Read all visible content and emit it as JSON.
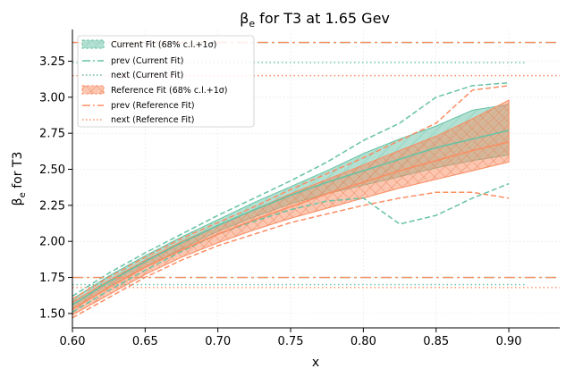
{
  "chart_data": {
    "type": "line",
    "title": "βe for T3 at 1.65 Gev",
    "title_main": "β",
    "title_sub": "e",
    "title_rest": " for T3 at 1.65 Gev",
    "xlabel": "x",
    "ylabel_main": "β",
    "ylabel_sub": "e",
    "ylabel_rest": " for T3",
    "xlim": [
      0.6,
      0.935
    ],
    "ylim": [
      1.4,
      3.47
    ],
    "x_ticks": [
      "0.60",
      "0.65",
      "0.70",
      "0.75",
      "0.80",
      "0.85",
      "0.90"
    ],
    "y_ticks": [
      "1.50",
      "1.75",
      "2.00",
      "2.25",
      "2.50",
      "2.75",
      "3.00",
      "3.25"
    ],
    "grid": true,
    "legend_position": "top-left",
    "colors": {
      "current": "#66c2a5",
      "reference": "#fc8d62"
    },
    "legend": [
      "Current Fit (68% c.l.+1σ)",
      "prev (Current Fit)",
      "next (Current Fit)",
      "Reference Fit (68% c.l.+1σ)",
      "prev (Reference Fit)",
      "next (Reference Fit)"
    ],
    "x": [
      0.6,
      0.625,
      0.65,
      0.675,
      0.7,
      0.725,
      0.75,
      0.775,
      0.8,
      0.825,
      0.85,
      0.875,
      0.9
    ],
    "series": [
      {
        "name": "Current Fit (68% c.l.+1σ)",
        "central": [
          1.56,
          1.72,
          1.86,
          1.99,
          2.11,
          2.22,
          2.32,
          2.41,
          2.49,
          2.57,
          2.65,
          2.71,
          2.77
        ],
        "upper": [
          1.6,
          1.76,
          1.9,
          2.03,
          2.15,
          2.27,
          2.38,
          2.49,
          2.61,
          2.71,
          2.8,
          2.91,
          2.95
        ],
        "lower": [
          1.53,
          1.68,
          1.82,
          1.95,
          2.07,
          2.17,
          2.26,
          2.33,
          2.39,
          2.45,
          2.51,
          2.56,
          2.6
        ],
        "outer_upper": [
          1.62,
          1.78,
          1.92,
          2.05,
          2.18,
          2.3,
          2.42,
          2.55,
          2.7,
          2.82,
          3.0,
          3.08,
          3.1
        ],
        "outer_lower": [
          1.51,
          1.66,
          1.8,
          1.93,
          2.05,
          2.14,
          2.22,
          2.28,
          2.3,
          2.12,
          2.18,
          2.3,
          2.4
        ],
        "prev_level": 3.38,
        "next_level": 3.24,
        "prev_low": 1.75,
        "next_low": 1.7
      },
      {
        "name": "Reference Fit (68% c.l.+1σ)",
        "central": [
          1.53,
          1.68,
          1.82,
          1.94,
          2.05,
          2.15,
          2.24,
          2.33,
          2.41,
          2.49,
          2.56,
          2.63,
          2.69
        ],
        "upper": [
          1.58,
          1.73,
          1.87,
          2.0,
          2.11,
          2.22,
          2.33,
          2.43,
          2.53,
          2.63,
          2.73,
          2.85,
          2.98
        ],
        "lower": [
          1.49,
          1.63,
          1.77,
          1.89,
          1.99,
          2.08,
          2.16,
          2.23,
          2.3,
          2.37,
          2.43,
          2.49,
          2.55
        ],
        "outer_upper": [
          1.6,
          1.75,
          1.89,
          2.02,
          2.13,
          2.24,
          2.36,
          2.47,
          2.58,
          2.7,
          2.82,
          3.05,
          3.08
        ],
        "outer_lower": [
          1.47,
          1.61,
          1.75,
          1.87,
          1.97,
          2.05,
          2.13,
          2.19,
          2.25,
          2.3,
          2.34,
          2.34,
          2.3
        ],
        "prev_level": 3.38,
        "next_level": 3.15,
        "prev_low": 1.75,
        "next_low": 1.68
      }
    ]
  }
}
